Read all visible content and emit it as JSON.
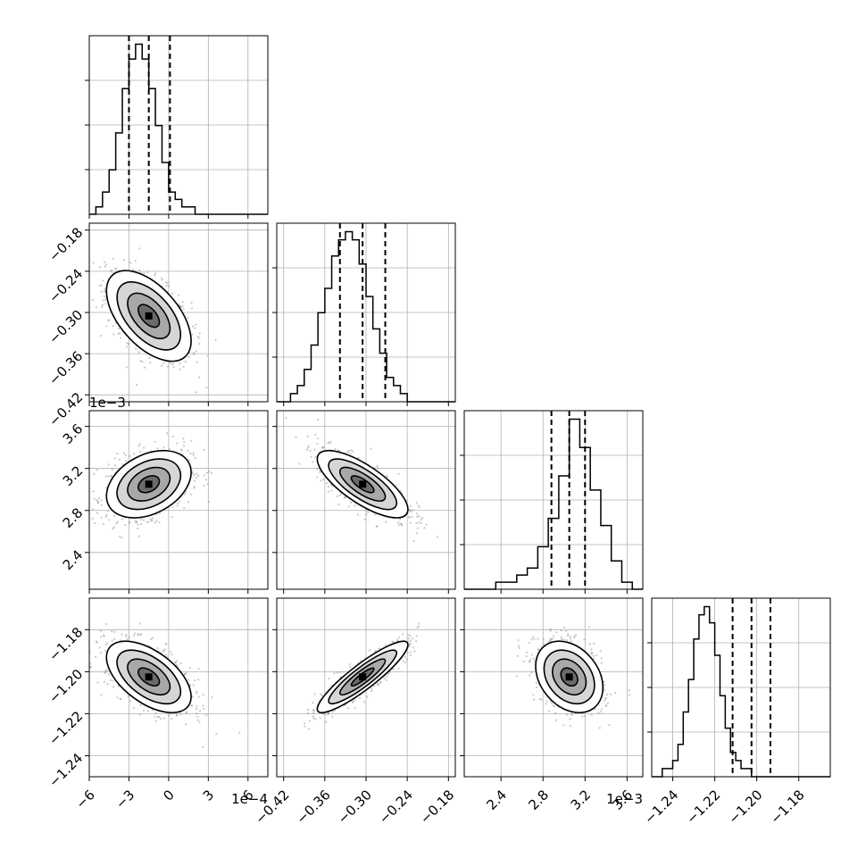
{
  "chart_data": {
    "type": "corner",
    "n_params": 4,
    "colors": {
      "line": "#000000",
      "grid": "#b0b0b0",
      "points": "#888888"
    },
    "grid": true,
    "params": [
      {
        "ylim_label_order": 0,
        "range": [
          -6.0,
          7.5
        ],
        "ticks": [
          -6,
          -3,
          0,
          3,
          6
        ],
        "tick_labels": [
          "−6",
          "−3",
          "0",
          "3",
          "6"
        ],
        "offset_label": "1e−4",
        "hist": {
          "edges_start": -6.0,
          "bin_width": 0.5,
          "counts": [
            0,
            1,
            3,
            6,
            11,
            17,
            21,
            23,
            21,
            17,
            12,
            7,
            3,
            2,
            1,
            1,
            0,
            0,
            0,
            0,
            0,
            0,
            0,
            0,
            0,
            0,
            0
          ]
        },
        "quantiles": [
          -3.0,
          -1.5,
          0.1
        ],
        "mean": -1.5,
        "sd": 1.6
      },
      {
        "range": [
          -0.43,
          -0.17
        ],
        "ticks": [
          -0.42,
          -0.36,
          -0.3,
          -0.24,
          -0.18
        ],
        "tick_labels": [
          "−0.42",
          "−0.36",
          "−0.30",
          "−0.24",
          "−0.18"
        ],
        "offset_label": "",
        "hist": {
          "edges_start": -0.43,
          "bin_width": 0.01,
          "counts": [
            0,
            0,
            1,
            2,
            4,
            7,
            11,
            14,
            18,
            20,
            21,
            20,
            17,
            13,
            9,
            6,
            3,
            2,
            1,
            0,
            0,
            0,
            0,
            0,
            0,
            0
          ]
        },
        "quantiles": [
          -0.338,
          -0.305,
          -0.272
        ],
        "mean": -0.305,
        "sd": 0.033
      },
      {
        "range": [
          2.05,
          3.75
        ],
        "ticks": [
          2.4,
          2.8,
          3.2,
          3.6
        ],
        "tick_labels": [
          "2.4",
          "2.8",
          "3.2",
          "3.6"
        ],
        "offset_label": "1e−3",
        "hist": {
          "edges_start": 2.05,
          "bin_width": 0.1,
          "counts": [
            0,
            0,
            0,
            1,
            1,
            2,
            3,
            6,
            10,
            16,
            24,
            20,
            14,
            9,
            4,
            1,
            0
          ]
        },
        "quantiles": [
          2.88,
          3.05,
          3.2
        ],
        "mean": 3.05,
        "sd": 0.16
      },
      {
        "range": [
          -1.25,
          -1.165
        ],
        "ticks": [
          -1.24,
          -1.22,
          -1.2,
          -1.18
        ],
        "tick_labels": [
          "−1.24",
          "−1.22",
          "−1.20",
          "−1.18"
        ],
        "offset_label": "",
        "hist": {
          "edges_start": -1.25,
          "bin_width": 0.0025,
          "counts": [
            0,
            0,
            1,
            1,
            2,
            4,
            8,
            12,
            17,
            20,
            21,
            19,
            15,
            10,
            6,
            3,
            2,
            1,
            1,
            0,
            0,
            0,
            0,
            0,
            0,
            0,
            0,
            0,
            0,
            0,
            0,
            0,
            0,
            0
          ]
        },
        "quantiles": [
          -1.2115,
          -1.2025,
          -1.1935
        ],
        "mean": -1.2025,
        "sd": 0.0085
      }
    ],
    "pairs": [
      {
        "x": 0,
        "y": 1,
        "corr": -0.55
      },
      {
        "x": 0,
        "y": 2,
        "corr": 0.35
      },
      {
        "x": 1,
        "y": 2,
        "corr": -0.75
      },
      {
        "x": 0,
        "y": 3,
        "corr": -0.55
      },
      {
        "x": 1,
        "y": 3,
        "corr": 0.9
      },
      {
        "x": 2,
        "y": 3,
        "corr": -0.3
      }
    ],
    "contour_levels_sigma": [
      0.5,
      1.0,
      1.5,
      2.0
    ]
  }
}
